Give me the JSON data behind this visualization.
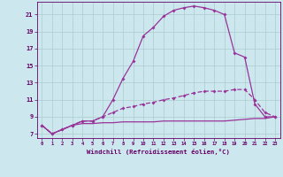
{
  "xlabel": "Windchill (Refroidissement éolien,°C)",
  "bg_color": "#cce8ee",
  "grid_color": "#aacccc",
  "line_color": "#993399",
  "xlim": [
    -0.5,
    23.5
  ],
  "ylim": [
    6.5,
    22.5
  ],
  "xticks": [
    0,
    1,
    2,
    3,
    4,
    5,
    6,
    7,
    8,
    9,
    10,
    11,
    12,
    13,
    14,
    15,
    16,
    17,
    18,
    19,
    20,
    21,
    22,
    23
  ],
  "yticks": [
    7,
    9,
    11,
    13,
    15,
    17,
    19,
    21
  ],
  "curve1_x": [
    0,
    1,
    2,
    3,
    4,
    5,
    6,
    7,
    8,
    9,
    10,
    11,
    12,
    13,
    14,
    15,
    16,
    17,
    18,
    19,
    20,
    21,
    22,
    23
  ],
  "curve1_y": [
    8.0,
    7.0,
    7.5,
    8.0,
    8.5,
    8.5,
    9.0,
    11.0,
    13.5,
    15.5,
    18.5,
    19.5,
    20.8,
    21.5,
    21.8,
    22.0,
    21.8,
    21.5,
    21.0,
    16.5,
    16.0,
    10.5,
    9.0,
    9.0
  ],
  "curve2_x": [
    0,
    1,
    2,
    3,
    4,
    5,
    6,
    7,
    8,
    9,
    10,
    11,
    12,
    13,
    14,
    15,
    16,
    17,
    18,
    19,
    20,
    21,
    22,
    23
  ],
  "curve2_y": [
    8.0,
    7.0,
    7.5,
    8.0,
    8.5,
    8.5,
    9.0,
    9.5,
    10.0,
    10.2,
    10.5,
    10.7,
    11.0,
    11.2,
    11.5,
    11.8,
    12.0,
    12.0,
    12.0,
    12.2,
    12.2,
    11.0,
    9.5,
    9.0
  ],
  "curve3_x": [
    0,
    1,
    2,
    3,
    4,
    5,
    6,
    7,
    8,
    9,
    10,
    11,
    12,
    13,
    14,
    15,
    16,
    17,
    18,
    19,
    20,
    21,
    22,
    23
  ],
  "curve3_y": [
    8.0,
    7.0,
    7.5,
    8.0,
    8.2,
    8.2,
    8.3,
    8.3,
    8.4,
    8.4,
    8.4,
    8.4,
    8.5,
    8.5,
    8.5,
    8.5,
    8.5,
    8.5,
    8.5,
    8.6,
    8.7,
    8.8,
    8.8,
    9.0
  ]
}
